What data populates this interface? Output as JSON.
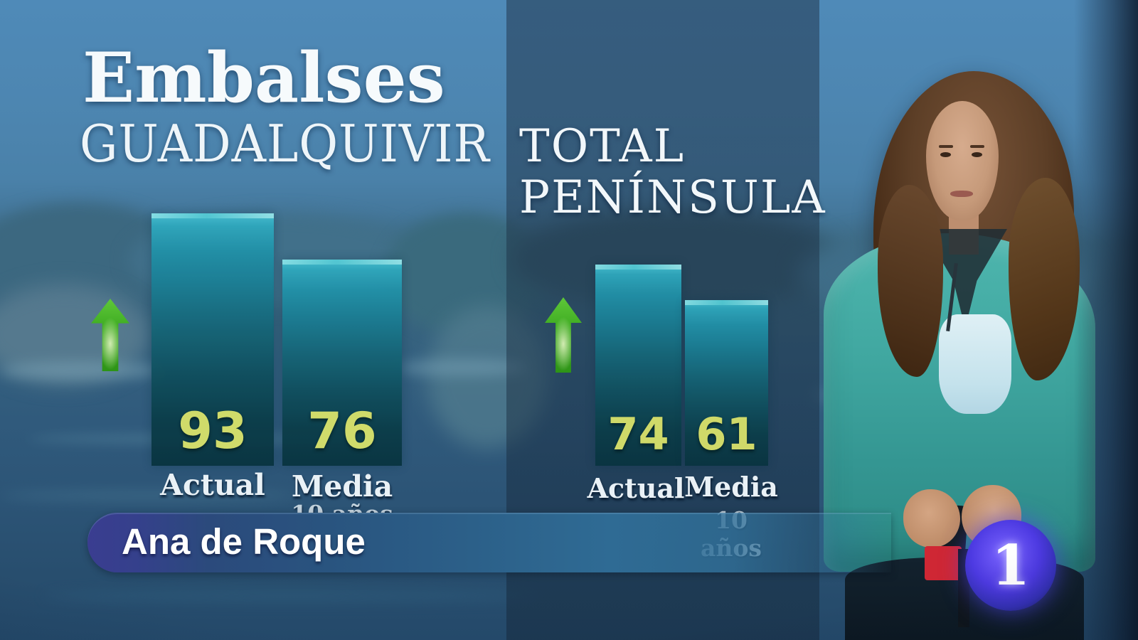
{
  "title": "Embalses",
  "chart_data": [
    {
      "type": "bar",
      "region": "GUADALQUIVIR",
      "categories": [
        "Actual",
        "Media"
      ],
      "values": [
        93,
        76
      ],
      "footnote": "10 años",
      "trend": "up",
      "ylim": [
        0,
        100
      ],
      "legend_position": "none",
      "grid": false
    },
    {
      "type": "bar",
      "region": "TOTAL PENÍNSULA",
      "categories": [
        "Actual",
        "Media"
      ],
      "values": [
        74,
        61
      ],
      "footnote": "10 años",
      "trend": "up",
      "ylim": [
        0,
        100
      ],
      "legend_position": "none",
      "grid": false
    }
  ],
  "lower_third": {
    "name": "Ana de Roque"
  },
  "channel": {
    "number": "1"
  },
  "colors": {
    "bar_top": "#49c3d4",
    "bar_bottom": "#093440",
    "value_text": "#d9e26a",
    "trend_arrow": "#3aa81f",
    "banner_left": "#3a3d90",
    "banner_mid": "#2c6089",
    "logo_circle": "#4d3ae2",
    "logo_red": "#cf2734",
    "heading_text": "#f6fafc"
  }
}
